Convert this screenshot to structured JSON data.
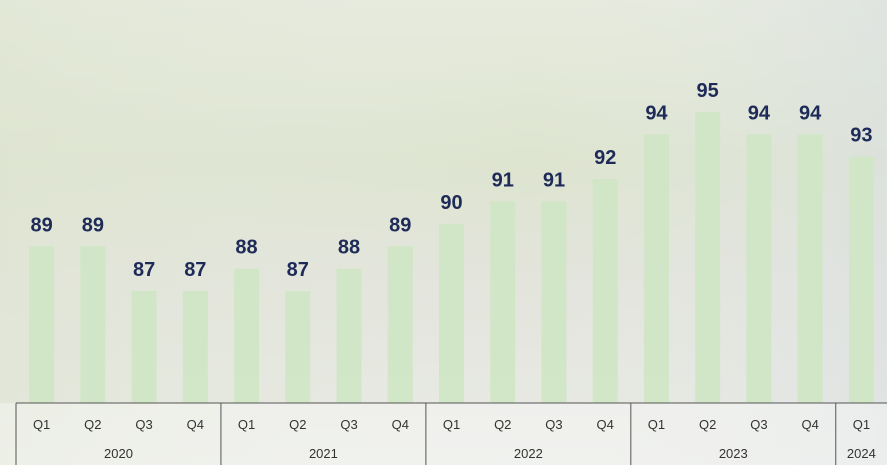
{
  "chart_data": {
    "type": "bar",
    "categories": [
      "Q1",
      "Q2",
      "Q3",
      "Q4",
      "Q1",
      "Q2",
      "Q3",
      "Q4",
      "Q1",
      "Q2",
      "Q3",
      "Q4",
      "Q1",
      "Q2",
      "Q3",
      "Q4",
      "Q1"
    ],
    "groups": [
      {
        "label": "2020",
        "count": 4
      },
      {
        "label": "2021",
        "count": 4
      },
      {
        "label": "2022",
        "count": 4
      },
      {
        "label": "2023",
        "count": 4
      },
      {
        "label": "2024",
        "count": 1
      }
    ],
    "values": [
      89,
      89,
      87,
      87,
      88,
      87,
      88,
      89,
      90,
      91,
      91,
      92,
      94,
      95,
      94,
      94,
      93
    ],
    "color": "#cfe6c4",
    "ylim": [
      82,
      100
    ]
  }
}
